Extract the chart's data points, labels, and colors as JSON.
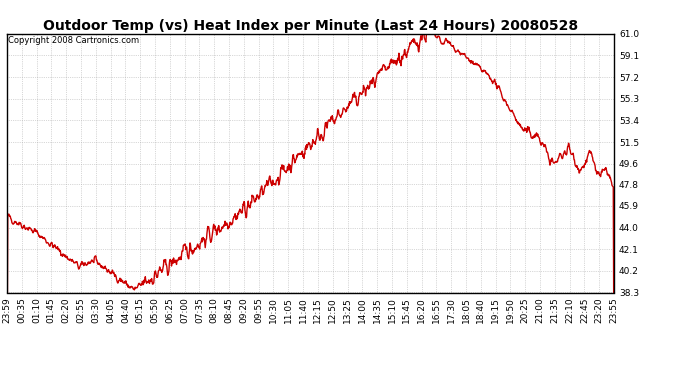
{
  "title": "Outdoor Temp (vs) Heat Index per Minute (Last 24 Hours) 20080528",
  "copyright": "Copyright 2008 Cartronics.com",
  "line_color": "#cc0000",
  "background_color": "#ffffff",
  "plot_bg_color": "#ffffff",
  "grid_color": "#aaaaaa",
  "ylim": [
    38.3,
    61.0
  ],
  "yticks": [
    38.3,
    40.2,
    42.1,
    44.0,
    45.9,
    47.8,
    49.6,
    51.5,
    53.4,
    55.3,
    57.2,
    59.1,
    61.0
  ],
  "xtick_labels": [
    "23:59",
    "00:35",
    "01:10",
    "01:45",
    "02:20",
    "02:55",
    "03:30",
    "04:05",
    "04:40",
    "05:15",
    "05:50",
    "06:25",
    "07:00",
    "07:35",
    "08:10",
    "08:45",
    "09:20",
    "09:55",
    "10:30",
    "11:05",
    "11:40",
    "12:15",
    "12:50",
    "13:25",
    "14:00",
    "14:35",
    "15:10",
    "15:45",
    "16:20",
    "16:55",
    "17:30",
    "18:05",
    "18:40",
    "19:15",
    "19:50",
    "20:25",
    "21:00",
    "21:35",
    "22:10",
    "22:45",
    "23:20",
    "23:55"
  ],
  "title_fontsize": 10,
  "tick_fontsize": 6.5,
  "copyright_fontsize": 6,
  "linewidth": 1.0,
  "figwidth": 6.9,
  "figheight": 3.75,
  "dpi": 100
}
